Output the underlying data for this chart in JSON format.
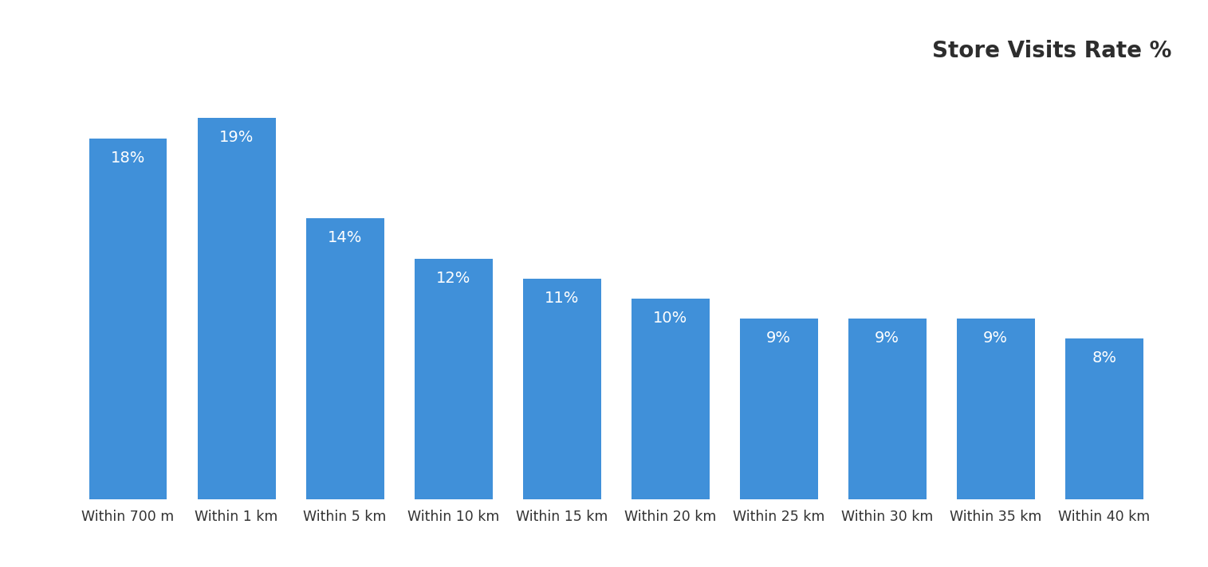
{
  "categories": [
    "Within 700 m",
    "Within 1 km",
    "Within 5 km",
    "Within 10 km",
    "Within 15 km",
    "Within 20 km",
    "Within 25 km",
    "Within 30 km",
    "Within 35 km",
    "Within 40 km"
  ],
  "values": [
    18,
    19,
    14,
    12,
    11,
    10,
    9,
    9,
    9,
    8
  ],
  "bar_color": "#4090d9",
  "label_color": "#ffffff",
  "title": "Store Visits Rate %",
  "title_color": "#2d2d2d",
  "title_fontsize": 20,
  "title_fontweight": "bold",
  "label_fontsize": 14,
  "xlabel_fontsize": 12.5,
  "xlabel_color": "#333333",
  "background_color": "#ffffff",
  "ylim": [
    0,
    21.5
  ],
  "bar_width": 0.72
}
